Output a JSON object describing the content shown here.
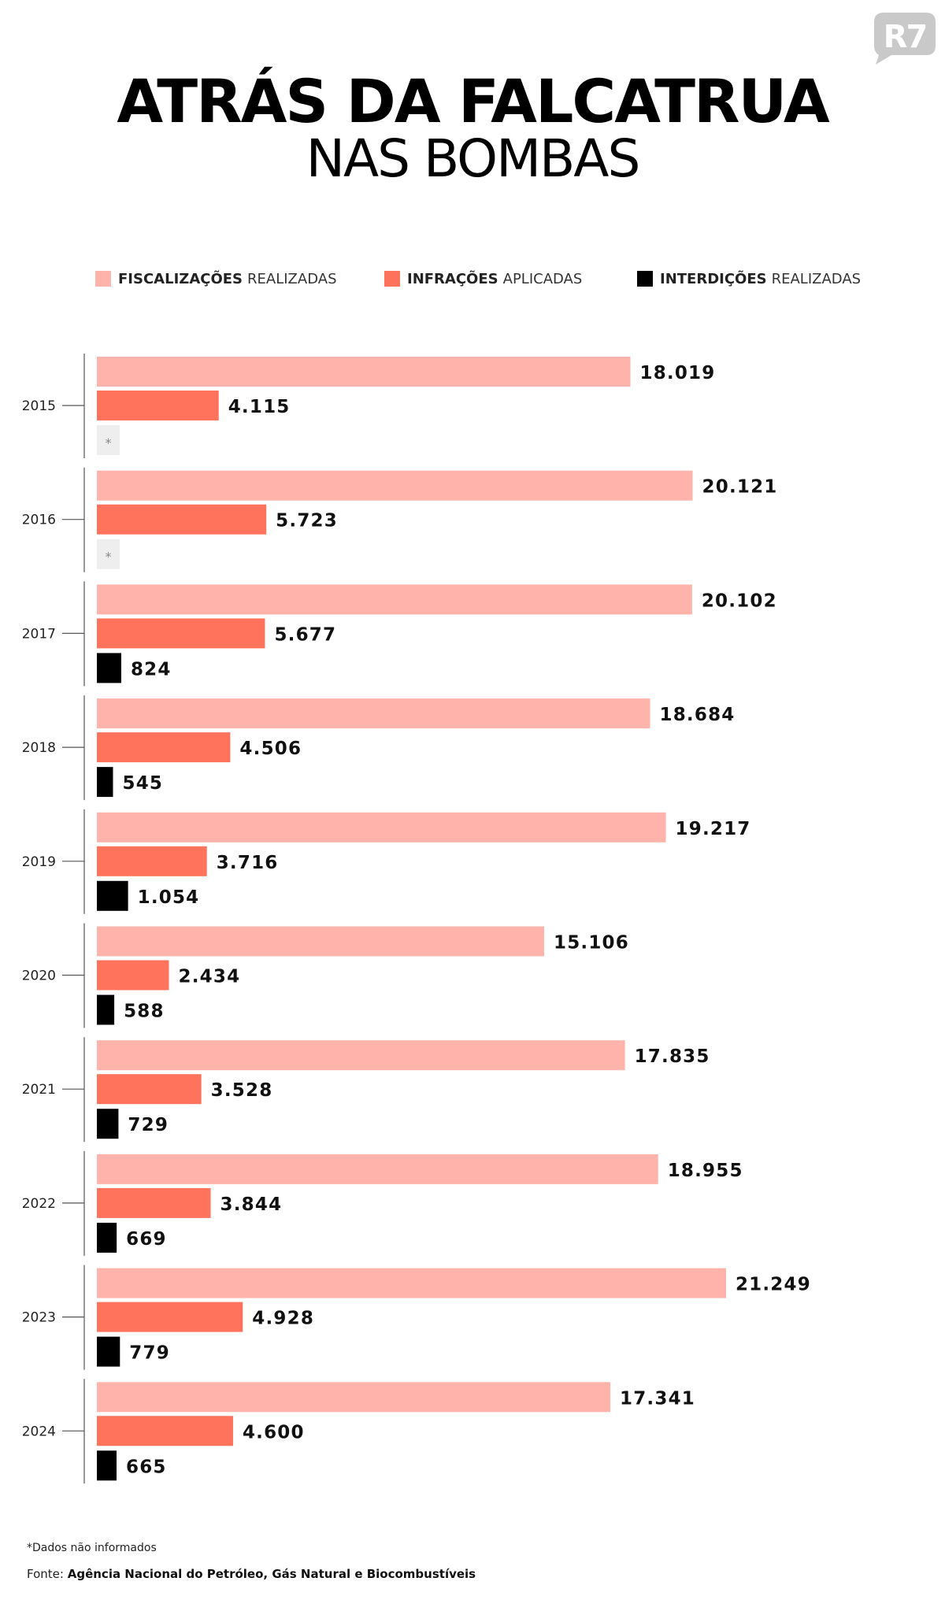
{
  "brand": {
    "logo_text": "R7",
    "logo_color": "#c9c9c9"
  },
  "title": "ATRÁS DA FALCATRUA",
  "subtitle": "NAS BOMBAS",
  "legend": [
    {
      "strong": "FISCALIZAÇÕES",
      "light": "REALIZADAS",
      "color": "#ffb3aa"
    },
    {
      "strong": "INFRAÇÕES",
      "light": "APLICADAS",
      "color": "#ff735c"
    },
    {
      "strong": "INTERDIÇÕES",
      "light": "REALIZADAS",
      "color": "#000000"
    }
  ],
  "chart_data": {
    "type": "bar",
    "orientation": "horizontal",
    "categories": [
      "2015",
      "2016",
      "2017",
      "2018",
      "2019",
      "2020",
      "2021",
      "2022",
      "2023",
      "2024"
    ],
    "series": [
      {
        "name": "FISCALIZAÇÕES REALIZADAS",
        "color": "#ffb3aa",
        "values": [
          18019,
          20121,
          20102,
          18684,
          19217,
          15106,
          17835,
          18955,
          21249,
          17341
        ],
        "labels": [
          "18.019",
          "20.121",
          "20.102",
          "18.684",
          "19.217",
          "15.106",
          "17.835",
          "18.955",
          "21.249",
          "17.341"
        ]
      },
      {
        "name": "INFRAÇÕES APLICADAS",
        "color": "#ff735c",
        "values": [
          4115,
          5723,
          5677,
          4506,
          3716,
          2434,
          3528,
          3844,
          4928,
          4600
        ],
        "labels": [
          "4.115",
          "5.723",
          "5.677",
          "4.506",
          "3.716",
          "2.434",
          "3.528",
          "3.844",
          "4.928",
          "4.600"
        ]
      },
      {
        "name": "INTERDIÇÕES REALIZADAS",
        "color": "#000000",
        "values": [
          null,
          null,
          824,
          545,
          1054,
          588,
          729,
          669,
          779,
          665
        ],
        "labels": [
          "*",
          "*",
          "824",
          "545",
          "1.054",
          "588",
          "729",
          "669",
          "779",
          "665"
        ]
      }
    ],
    "missing_marker": "*",
    "missing_color": "#eeeeee"
  },
  "footnote": "*Dados não informados",
  "source": {
    "prefix": "Fonte:",
    "name": "Agência Nacional do Petróleo, Gás Natural e Biocombustíveis"
  }
}
